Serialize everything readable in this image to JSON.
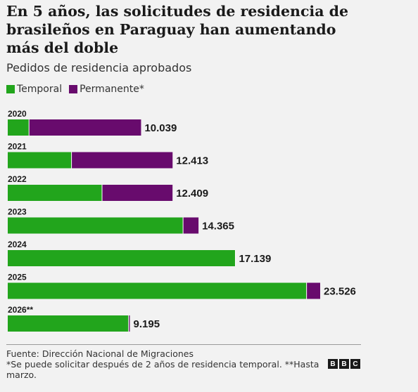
{
  "title": "En 5 años, las solicitudes de residencia de brasileños en Paraguay han aumentando más del doble",
  "subtitle": "Pedidos de residencia aprobados",
  "legend": [
    {
      "label": "Temporal",
      "color": "#22a51c"
    },
    {
      "label": "Permanente*",
      "color": "#680b6d"
    }
  ],
  "chart_data": {
    "type": "bar",
    "orientation": "horizontal",
    "stacked": true,
    "categories": [
      "2020",
      "2021",
      "2022",
      "2023",
      "2024",
      "2025",
      "2026**"
    ],
    "totals_label": [
      "10.039",
      "12.413",
      "12.409",
      "14.365",
      "17.139",
      "23.526",
      "9.195"
    ],
    "series": [
      {
        "name": "Temporal",
        "color": "#22a51c",
        "values": [
          1600,
          4800,
          7100,
          13200,
          17300,
          22500,
          9100
        ]
      },
      {
        "name": "Permanente*",
        "color": "#680b6d",
        "values": [
          8439,
          7613,
          5309,
          1165,
          -161,
          1026,
          95
        ]
      }
    ],
    "xlim": [
      0,
      23526
    ],
    "grid": false,
    "legend_position": "top-left"
  },
  "footer": {
    "source": "Fuente: Dirección Nacional de Migraciones",
    "note": "*Se puede solicitar después de 2 años de residencia temporal. **Hasta marzo."
  },
  "logo": [
    "B",
    "B",
    "C"
  ]
}
